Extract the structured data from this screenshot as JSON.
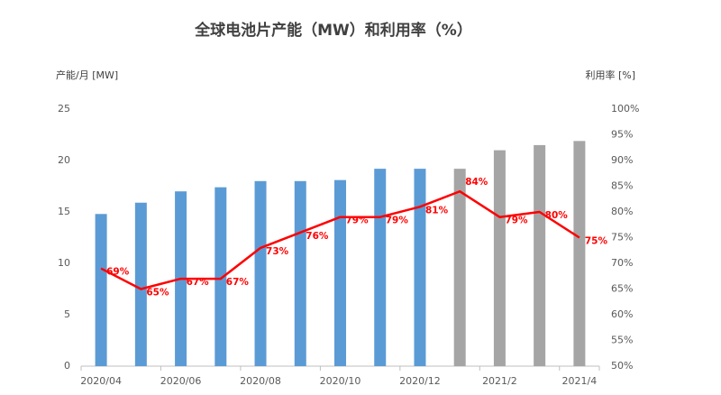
{
  "chart_data": {
    "type": "bar-line",
    "title": "全球电池片产能（MW）和利用率（%）",
    "ylabel": "产能/月 [MW]",
    "y2label": "利用率 [%]",
    "categories": [
      "2020/04",
      null,
      "2020/06",
      null,
      "2020/08",
      null,
      "2020/10",
      null,
      "2020/12",
      null,
      "2021/2",
      null,
      "2021/4"
    ],
    "ylim": [
      0,
      25
    ],
    "yticks": [
      0,
      5,
      10,
      15,
      20,
      25
    ],
    "y2lim": [
      50,
      100
    ],
    "y2ticks": [
      {
        "value": 50,
        "label": "50%"
      },
      {
        "value": 55,
        "label": "55%"
      },
      {
        "value": 60,
        "label": "60%"
      },
      {
        "value": 65,
        "label": "65%"
      },
      {
        "value": 70,
        "label": "70%"
      },
      {
        "value": 75,
        "label": "75%"
      },
      {
        "value": 80,
        "label": "80%"
      },
      {
        "value": 85,
        "label": "85%"
      },
      {
        "value": 90,
        "label": "90%"
      },
      {
        "value": 95,
        "label": "95%"
      },
      {
        "value": 100,
        "label": "100%"
      }
    ],
    "series": [
      {
        "type": "bar",
        "values": [
          14.8,
          15.9,
          17.0,
          17.4,
          18.0,
          18.0,
          18.1,
          19.2,
          19.2,
          19.2,
          21.0,
          21.5,
          21.9
        ],
        "colors": [
          "#5b9bd5",
          "#5b9bd5",
          "#5b9bd5",
          "#5b9bd5",
          "#5b9bd5",
          "#5b9bd5",
          "#5b9bd5",
          "#5b9bd5",
          "#5b9bd5",
          "#a5a5a5",
          "#a5a5a5",
          "#a5a5a5",
          "#a5a5a5"
        ]
      },
      {
        "type": "line",
        "axis": "y2",
        "color": "#ff0000",
        "values": [
          69,
          65,
          67,
          67,
          73,
          76,
          79,
          79,
          81,
          84,
          79,
          80,
          75
        ],
        "value_labels": [
          "69%",
          "65%",
          "67%",
          "67%",
          "73%",
          "76%",
          "79%",
          "79%",
          "81%",
          "84%",
          "79%",
          "80%",
          "75%"
        ]
      }
    ]
  }
}
